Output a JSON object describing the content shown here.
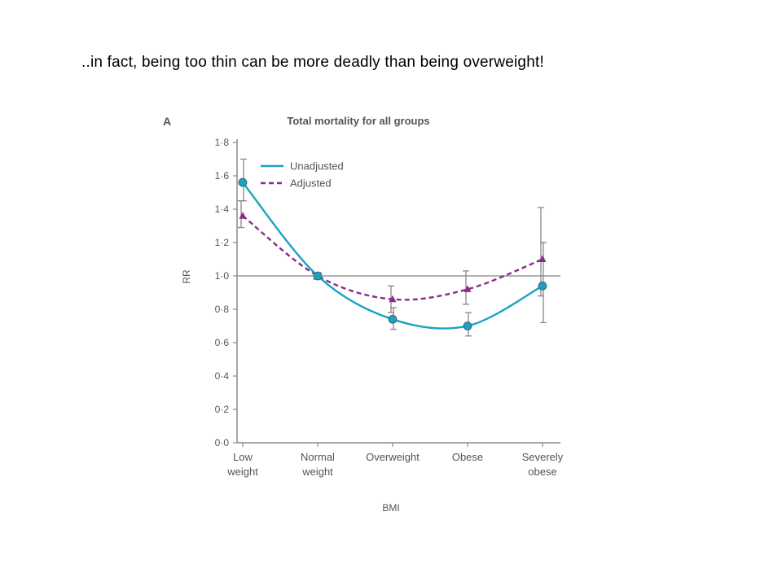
{
  "slide": {
    "text": "..in fact, being too thin can be more deadly than being overweight!"
  },
  "chart_data": {
    "type": "line",
    "panel_label": "A",
    "title": "Total mortality for all groups",
    "xlabel": "BMI",
    "ylabel": "RR",
    "categories": [
      [
        "Low",
        "weight"
      ],
      [
        "Normal",
        "weight"
      ],
      [
        "Overweight"
      ],
      [
        "Obese"
      ],
      [
        "Severely",
        "obese"
      ]
    ],
    "ylim": [
      0,
      1.8
    ],
    "yticks": [
      "0·0",
      "0·2",
      "0·4",
      "0·6",
      "0·8",
      "1·0",
      "1·2",
      "1·4",
      "1·6",
      "1·8"
    ],
    "reference_line": 1.0,
    "legend_position": "top-left",
    "colors": {
      "unadjusted": "#1aa3c4",
      "adjusted": "#8b2a8b",
      "axis": "#888888",
      "error_bar": "#888888"
    },
    "series": [
      {
        "name": "Unadjusted",
        "style": "solid",
        "marker": "circle",
        "values": [
          1.56,
          1.0,
          0.74,
          0.7,
          0.94
        ],
        "ci_low": [
          1.45,
          0.98,
          0.68,
          0.64,
          0.72
        ],
        "ci_high": [
          1.7,
          1.02,
          0.81,
          0.78,
          1.2
        ]
      },
      {
        "name": "Adjusted",
        "style": "dashed",
        "marker": "triangle",
        "values": [
          1.36,
          1.0,
          0.86,
          0.92,
          1.1
        ],
        "ci_low": [
          1.29,
          0.98,
          0.78,
          0.83,
          0.88
        ],
        "ci_high": [
          1.45,
          1.02,
          0.94,
          1.03,
          1.41
        ]
      }
    ]
  }
}
